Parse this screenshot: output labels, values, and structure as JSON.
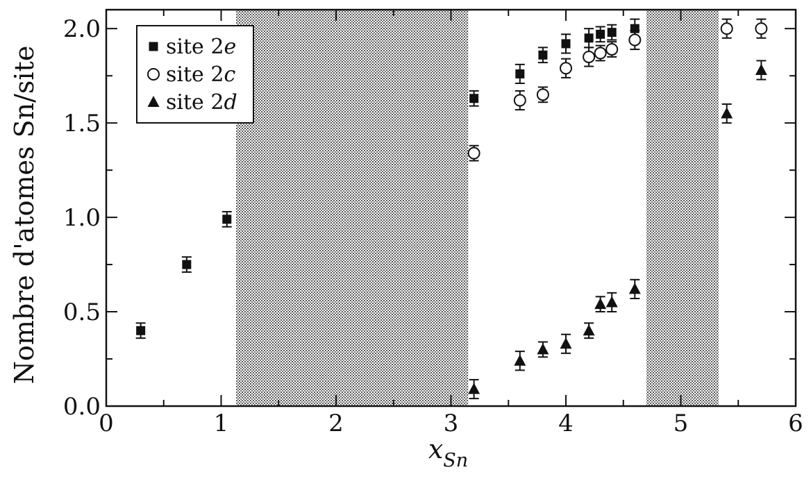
{
  "chart_data": {
    "type": "scatter",
    "xlabel": "x",
    "xlabel_sub": "Sn",
    "ylabel": "Nombre d'atomes Sn/site",
    "xlim": [
      0,
      6
    ],
    "ylim": [
      0,
      2.1
    ],
    "x_ticks": [
      "0",
      "1",
      "2",
      "3",
      "4",
      "5",
      "6"
    ],
    "y_ticks": [
      "0.0",
      "0.5",
      "1.0",
      "1.5",
      "2.0"
    ],
    "grid": false,
    "legend_position": "top-left",
    "shaded_x_ranges": [
      [
        1.13,
        3.15
      ],
      [
        4.7,
        5.33
      ]
    ],
    "series": [
      {
        "name": "site 2e",
        "legend_prefix": "site 2",
        "legend_italic": "e",
        "marker": "filled-square",
        "points": [
          {
            "x": 0.3,
            "y": 0.4,
            "err": 0.04
          },
          {
            "x": 0.7,
            "y": 0.75,
            "err": 0.04
          },
          {
            "x": 1.05,
            "y": 0.99,
            "err": 0.04
          },
          {
            "x": 3.2,
            "y": 1.63,
            "err": 0.04
          },
          {
            "x": 3.6,
            "y": 1.76,
            "err": 0.05
          },
          {
            "x": 3.8,
            "y": 1.86,
            "err": 0.04
          },
          {
            "x": 4.0,
            "y": 1.92,
            "err": 0.05
          },
          {
            "x": 4.2,
            "y": 1.95,
            "err": 0.05
          },
          {
            "x": 4.3,
            "y": 1.97,
            "err": 0.04
          },
          {
            "x": 4.4,
            "y": 1.98,
            "err": 0.04
          },
          {
            "x": 4.6,
            "y": 2.0,
            "err": 0.05
          }
        ]
      },
      {
        "name": "site 2c",
        "legend_prefix": "site 2",
        "legend_italic": "c",
        "marker": "open-circle",
        "points": [
          {
            "x": 3.2,
            "y": 1.34,
            "err": 0.04
          },
          {
            "x": 3.6,
            "y": 1.62,
            "err": 0.05
          },
          {
            "x": 3.8,
            "y": 1.65,
            "err": 0.04
          },
          {
            "x": 4.0,
            "y": 1.79,
            "err": 0.05
          },
          {
            "x": 4.2,
            "y": 1.85,
            "err": 0.05
          },
          {
            "x": 4.3,
            "y": 1.87,
            "err": 0.04
          },
          {
            "x": 4.4,
            "y": 1.89,
            "err": 0.04
          },
          {
            "x": 4.6,
            "y": 1.94,
            "err": 0.05
          },
          {
            "x": 5.4,
            "y": 2.0,
            "err": 0.05
          },
          {
            "x": 5.7,
            "y": 2.0,
            "err": 0.05
          }
        ]
      },
      {
        "name": "site 2d",
        "legend_prefix": "site 2",
        "legend_italic": "d",
        "marker": "filled-triangle",
        "points": [
          {
            "x": 3.2,
            "y": 0.09,
            "err": 0.05
          },
          {
            "x": 3.6,
            "y": 0.24,
            "err": 0.05
          },
          {
            "x": 3.8,
            "y": 0.3,
            "err": 0.04
          },
          {
            "x": 4.0,
            "y": 0.33,
            "err": 0.05
          },
          {
            "x": 4.2,
            "y": 0.4,
            "err": 0.04
          },
          {
            "x": 4.3,
            "y": 0.54,
            "err": 0.04
          },
          {
            "x": 4.4,
            "y": 0.55,
            "err": 0.05
          },
          {
            "x": 4.6,
            "y": 0.62,
            "err": 0.05
          },
          {
            "x": 5.4,
            "y": 1.55,
            "err": 0.05
          },
          {
            "x": 5.7,
            "y": 1.78,
            "err": 0.05
          }
        ]
      }
    ]
  }
}
